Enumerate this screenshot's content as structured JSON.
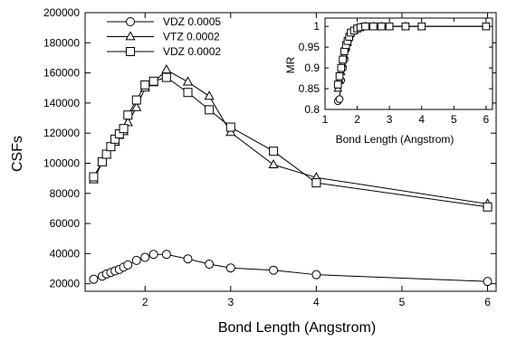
{
  "chart_data": [
    {
      "type": "line",
      "xlabel": "Bond Length (Angstrom)",
      "ylabel": "CSFs",
      "xlim": [
        1.3,
        6.1
      ],
      "ylim": [
        15000,
        200000
      ],
      "xticks": [
        2,
        3,
        4,
        5,
        6
      ],
      "yticks": [
        20000,
        40000,
        60000,
        80000,
        100000,
        120000,
        140000,
        160000,
        180000,
        200000
      ],
      "grid": false,
      "legend_position": "top-left",
      "series": [
        {
          "name": "VDZ 0.0005",
          "marker": "circle",
          "x": [
            1.4,
            1.5,
            1.55,
            1.6,
            1.65,
            1.7,
            1.75,
            1.8,
            1.9,
            2.0,
            2.1,
            2.25,
            2.5,
            2.75,
            3.0,
            3.5,
            4.0,
            6.0
          ],
          "y": [
            23000,
            25000,
            26500,
            27500,
            28500,
            29500,
            31000,
            32500,
            35500,
            37500,
            39500,
            39500,
            36500,
            33000,
            30500,
            29000,
            26000,
            21500
          ]
        },
        {
          "name": "VTZ 0.0002",
          "marker": "triangle",
          "x": [
            1.4,
            1.5,
            1.55,
            1.6,
            1.65,
            1.7,
            1.75,
            1.8,
            1.9,
            2.0,
            2.1,
            2.25,
            2.5,
            2.75,
            3.0,
            3.5,
            4.0,
            6.0
          ],
          "y": [
            89000,
            100500,
            105500,
            110500,
            114000,
            118500,
            121000,
            127000,
            137000,
            150000,
            153500,
            162000,
            154000,
            144500,
            120500,
            99000,
            90500,
            73000
          ]
        },
        {
          "name": "VDZ 0.0002",
          "marker": "square",
          "x": [
            1.4,
            1.5,
            1.55,
            1.6,
            1.65,
            1.7,
            1.75,
            1.8,
            1.9,
            2.0,
            2.1,
            2.25,
            2.5,
            2.75,
            3.0,
            3.5,
            4.0,
            6.0
          ],
          "y": [
            91000,
            101000,
            106000,
            111000,
            116000,
            119500,
            123000,
            132000,
            142000,
            152000,
            154500,
            157000,
            147000,
            135500,
            124000,
            108000,
            87000,
            71000
          ]
        }
      ]
    },
    {
      "type": "line",
      "xlabel": "Bond Length (Angstrom)",
      "ylabel": "MR",
      "xlim": [
        1,
        6.2
      ],
      "ylim": [
        0.8,
        1.02
      ],
      "xticks": [
        1,
        2,
        3,
        4,
        5,
        6
      ],
      "yticks": [
        0.8,
        0.85,
        0.9,
        0.95,
        1
      ],
      "ytick_labels": [
        "0.8",
        "0.85",
        "0.9",
        "0.95",
        "1"
      ],
      "grid": false,
      "series": [
        {
          "marker": "circle",
          "x": [
            1.4,
            1.45,
            1.5,
            1.55,
            1.6,
            1.65,
            1.7,
            1.75,
            1.8,
            1.9,
            2.0,
            2.1,
            2.25,
            2.5,
            2.75,
            3.0,
            3.5,
            4.0,
            6.0
          ],
          "y": [
            0.82,
            0.825,
            0.87,
            0.9,
            0.92,
            0.945,
            0.96,
            0.97,
            0.98,
            0.99,
            0.995,
            0.998,
            1.0,
            1.0,
            1.0,
            1.0,
            1.0,
            1.0,
            1.0
          ]
        },
        {
          "marker": "triangle",
          "x": [
            1.4,
            1.45,
            1.5,
            1.55,
            1.6,
            1.65,
            1.7,
            1.75,
            1.8,
            1.9,
            2.0,
            2.1,
            2.25,
            2.5,
            2.75,
            3.0,
            3.5,
            4.0,
            6.0
          ],
          "y": [
            0.85,
            0.87,
            0.89,
            0.91,
            0.93,
            0.95,
            0.96,
            0.975,
            0.985,
            0.99,
            0.995,
            0.998,
            1.0,
            1.0,
            1.0,
            1.0,
            1.0,
            1.0,
            1.0
          ]
        },
        {
          "marker": "square",
          "x": [
            1.4,
            1.45,
            1.5,
            1.55,
            1.6,
            1.65,
            1.7,
            1.75,
            1.8,
            1.9,
            2.0,
            2.1,
            2.25,
            2.5,
            2.75,
            3.0,
            3.5,
            4.0,
            6.0
          ],
          "y": [
            0.86,
            0.88,
            0.9,
            0.92,
            0.94,
            0.955,
            0.965,
            0.975,
            0.985,
            0.99,
            0.995,
            0.998,
            1.0,
            1.0,
            1.0,
            1.0,
            1.0,
            1.0,
            1.0
          ]
        }
      ]
    }
  ]
}
